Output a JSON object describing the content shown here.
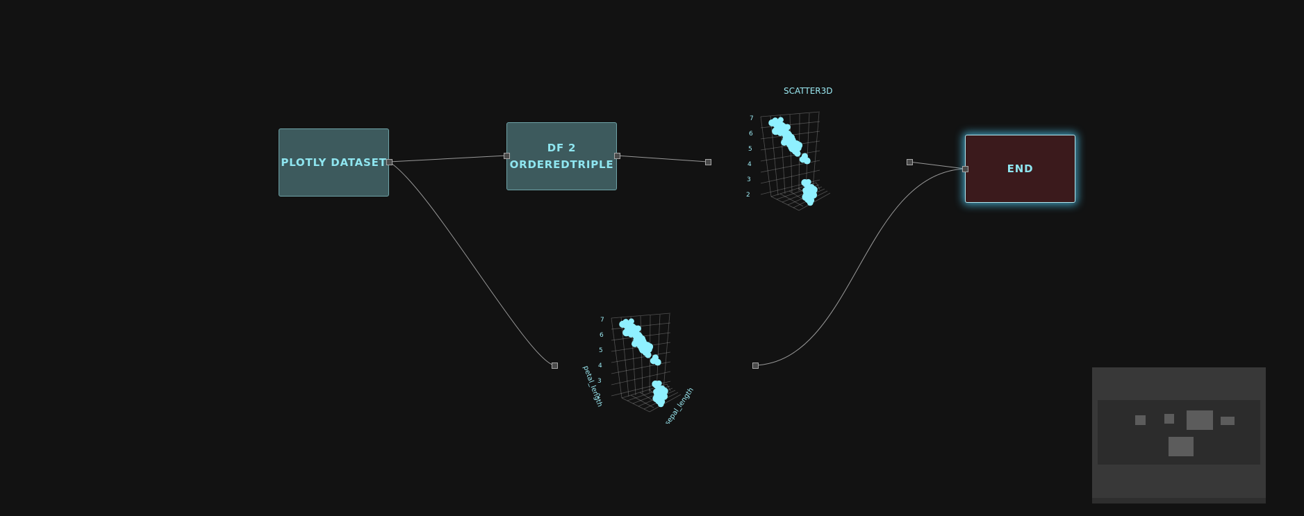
{
  "nodes": {
    "plotly_dataset": "PLOTLY DATASET",
    "df2_line1": "DF 2",
    "df2_line2": "ORDEREDTRIPLE",
    "end": "END"
  },
  "plots": {
    "top_title": "SCATTER3D",
    "z_ticks": [
      "7",
      "6",
      "5",
      "4",
      "3",
      "2"
    ],
    "axis_label_z": "petal_length",
    "axis_label_x": "sepal_length"
  },
  "colors": {
    "background": "#121212",
    "data_node_fill": "#3d5a5d",
    "end_node_fill": "#3b1a1c",
    "accent_text": "#8fe6f0",
    "scatter_point": "#8ff0ff",
    "wire": "#9a9a9a",
    "glow": "#50c8f0"
  }
}
